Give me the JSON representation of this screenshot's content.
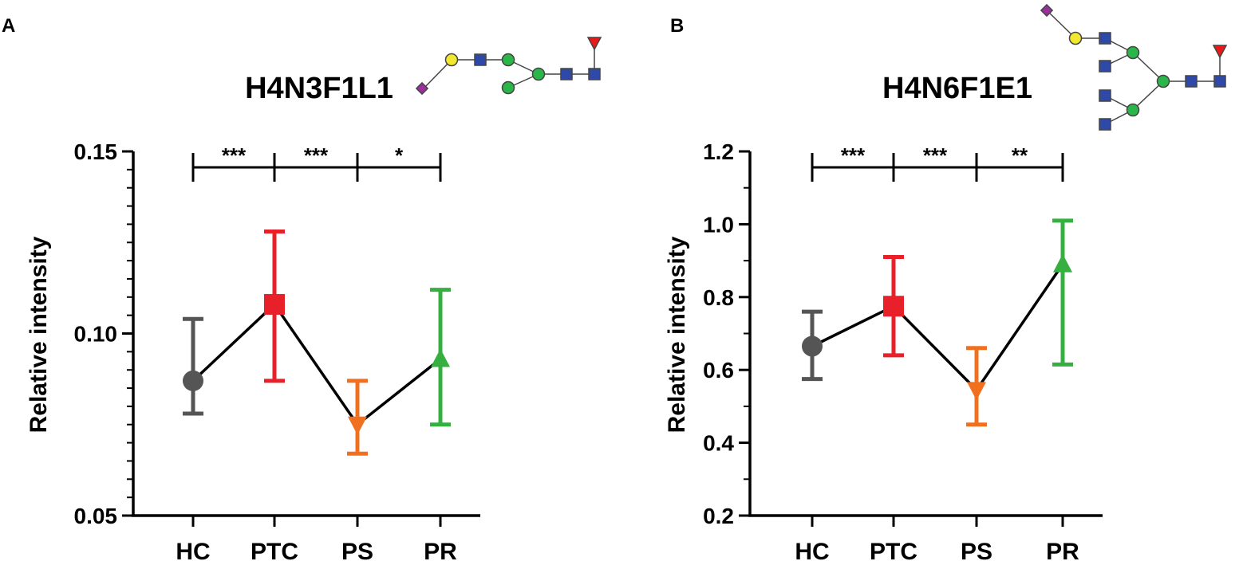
{
  "chart_data": [
    {
      "type": "line",
      "panel_label": "A",
      "title": "H4N3F1L1",
      "xlabel": "",
      "ylabel": "Relative intensity",
      "categories": [
        "HC",
        "PTC",
        "PS",
        "PR"
      ],
      "ylim": [
        0.05,
        0.15
      ],
      "yticks": [
        "0.05",
        "0.10",
        "0.15"
      ],
      "yminor_step": 0.005,
      "series": [
        {
          "name": "Relative intensity",
          "values": [
            0.087,
            0.108,
            0.075,
            0.093
          ],
          "err_low": [
            0.078,
            0.087,
            0.067,
            0.075
          ],
          "err_high": [
            0.104,
            0.128,
            0.087,
            0.112
          ],
          "markers": [
            "circle",
            "square",
            "triangle-down",
            "triangle-up"
          ],
          "colors": [
            "#555555",
            "#e8202a",
            "#f07020",
            "#35b040"
          ]
        }
      ],
      "annotations": [
        {
          "from": "HC",
          "to": "PTC",
          "text": "***"
        },
        {
          "from": "PTC",
          "to": "PS",
          "text": "***"
        },
        {
          "from": "PS",
          "to": "PR",
          "text": "*"
        }
      ],
      "glycan_icon": "H4N3F1L1-glycan-structure"
    },
    {
      "type": "line",
      "panel_label": "B",
      "title": "H4N6F1E1",
      "xlabel": "",
      "ylabel": "Relative intensity",
      "categories": [
        "HC",
        "PTC",
        "PS",
        "PR"
      ],
      "ylim": [
        0.2,
        1.2
      ],
      "yticks": [
        "0.2",
        "0.4",
        "0.6",
        "0.8",
        "1.0",
        "1.2"
      ],
      "yminor_step": 0.1,
      "series": [
        {
          "name": "Relative intensity",
          "values": [
            0.665,
            0.775,
            0.545,
            0.89
          ],
          "err_low": [
            0.575,
            0.64,
            0.45,
            0.615
          ],
          "err_high": [
            0.76,
            0.91,
            0.66,
            1.01
          ],
          "markers": [
            "circle",
            "square",
            "triangle-down",
            "triangle-up"
          ],
          "colors": [
            "#555555",
            "#e8202a",
            "#f07020",
            "#35b040"
          ]
        }
      ],
      "annotations": [
        {
          "from": "HC",
          "to": "PTC",
          "text": "***"
        },
        {
          "from": "PTC",
          "to": "PS",
          "text": "***"
        },
        {
          "from": "PS",
          "to": "PR",
          "text": "**"
        }
      ],
      "glycan_icon": "H4N6F1E1-glycan-structure"
    }
  ]
}
